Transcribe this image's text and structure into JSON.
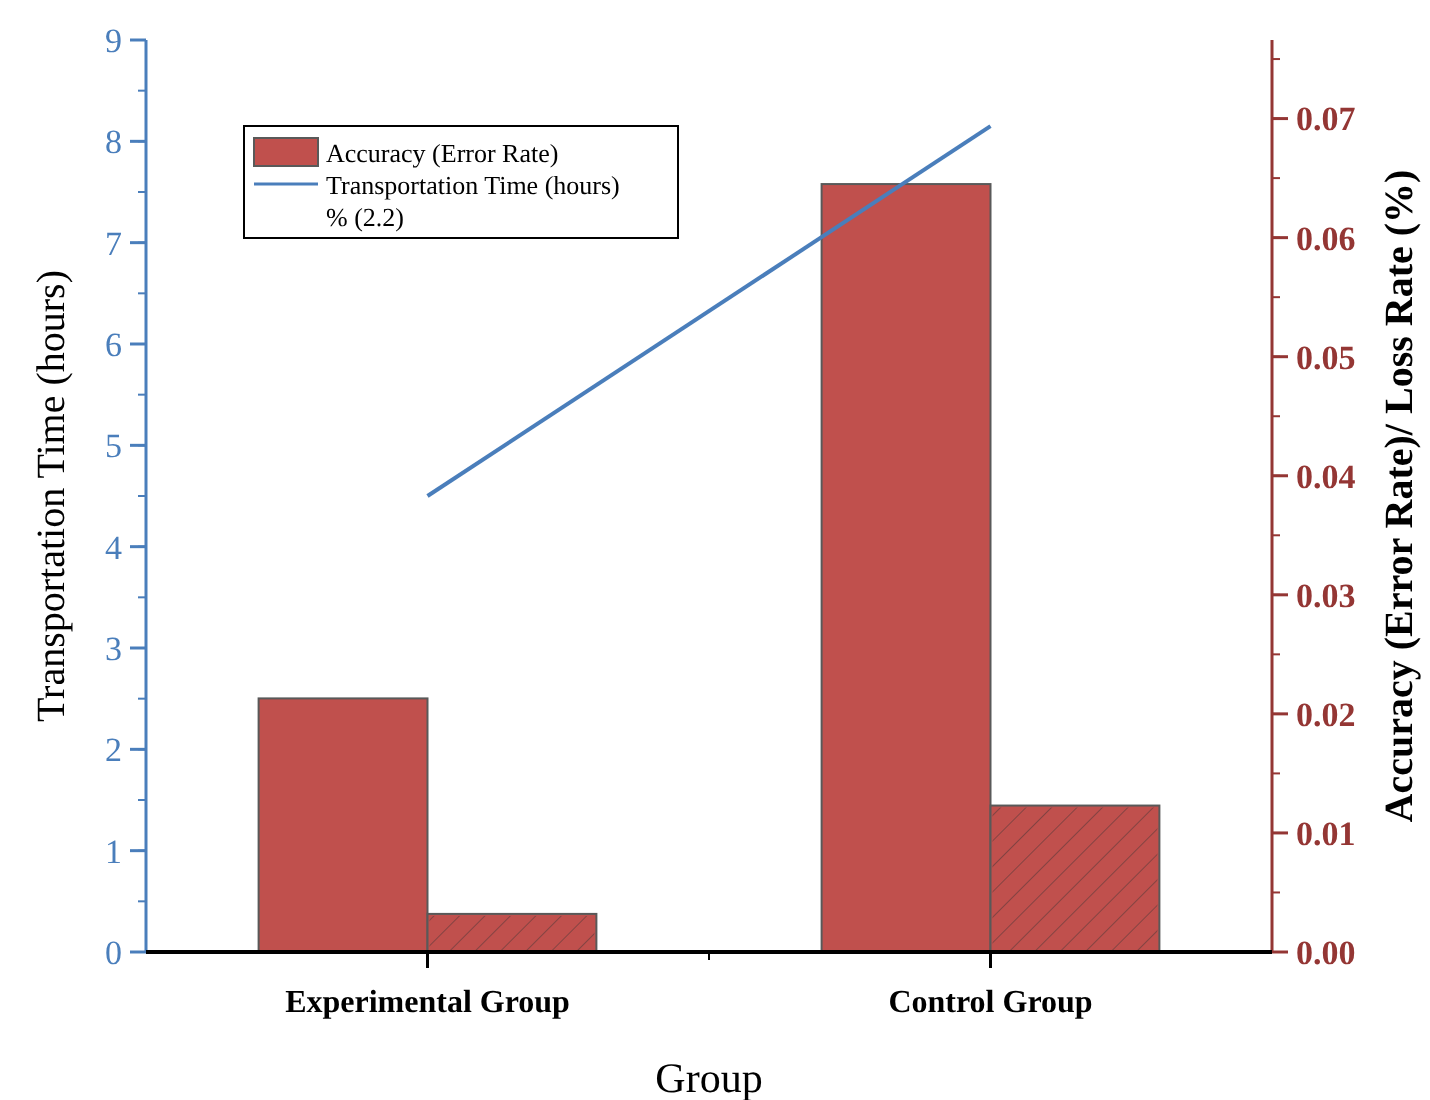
{
  "chart_data": {
    "type": "bar",
    "xlabel": "Group",
    "ylabel": "Transportation Time (hours)",
    "y2label": "Accuracy (Error Rate)/ Loss Rate (%)",
    "categories": [
      "Experimental Group",
      "Control Group"
    ],
    "series": [
      {
        "name": "Accuracy (Error Rate)",
        "color": "#c0504d",
        "axis": "y2",
        "values": [
          0.0213,
          0.0645
        ]
      },
      {
        "color": "#c0504d",
        "axis": "y2",
        "values": [
          0.0032,
          0.0123
        ]
      },
      {
        "type": "line",
        "name": "Transportation Time (hours)",
        "color": "#4a7ebb",
        "values": [
          4.5,
          8.15
        ]
      }
    ],
    "ylim": [
      0,
      9
    ],
    "yticks": [
      0,
      1,
      2,
      3,
      4,
      5,
      6,
      7,
      8,
      9
    ],
    "y2lim": [
      0,
      0.0766
    ],
    "y2ticks": [
      {
        "value": 0,
        "label": "0.00"
      },
      {
        "value": 0.01,
        "label": "0.01"
      },
      {
        "value": 0.02,
        "label": "0.02"
      },
      {
        "value": 0.03,
        "label": "0.03"
      },
      {
        "value": 0.04,
        "label": "0.04"
      },
      {
        "value": 0.05,
        "label": "0.05"
      },
      {
        "value": 0.06,
        "label": "0.06"
      },
      {
        "value": 0.07,
        "label": "0.07"
      }
    ],
    "annotations": [
      "% (2.2)"
    ],
    "legend": "top left",
    "grid": false
  }
}
